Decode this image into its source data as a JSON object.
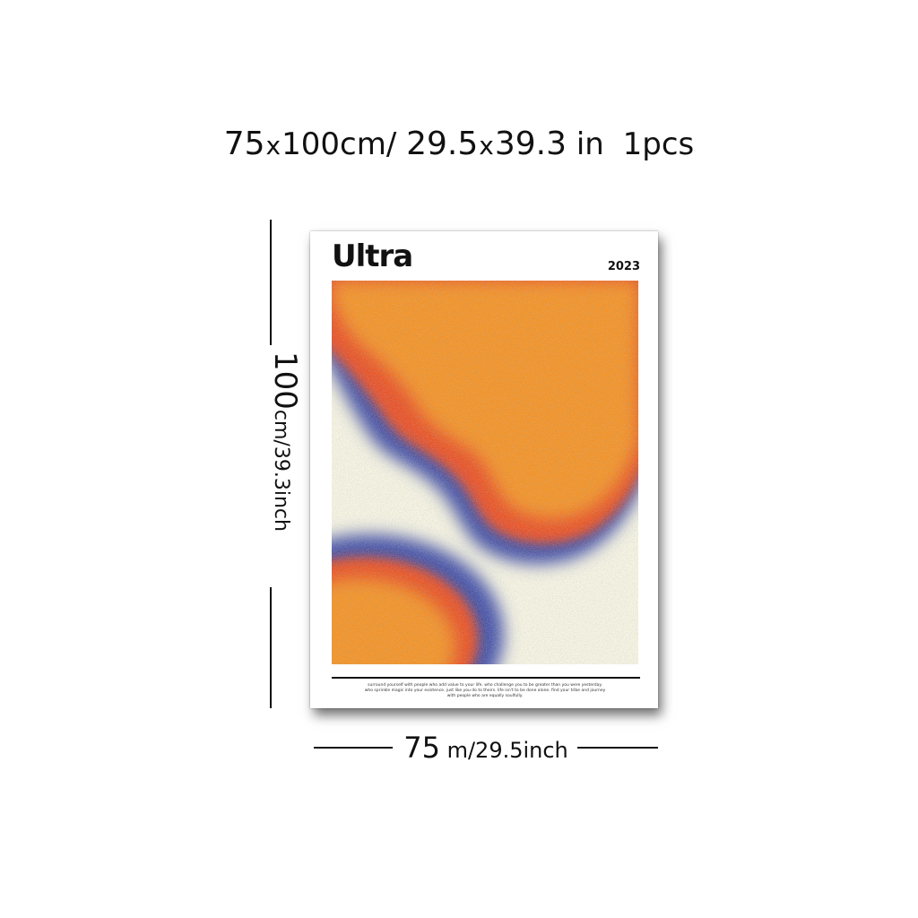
{
  "heading": {
    "width": "75",
    "x1": "x",
    "height": "100cm/",
    "width_in": "29.5",
    "x2": "x",
    "height_in": "39.3",
    "unit_in": "in",
    "qty": "1pcs"
  },
  "vertical_dimension": {
    "number": "100",
    "unit": "cm/39.3inch"
  },
  "horizontal_dimension": {
    "number": "75",
    "unit": "m/29.5inch"
  },
  "poster": {
    "title": "Ultra",
    "year": "2023",
    "quote": "surround yourself with people who add value to your life. who challenge you to be greater than you were yesterday. who sprinkle magic into your existence. just like you do to theirs. life isn't to be done alone. find your tribe and journey with people who are equally soulfully.",
    "colors": {
      "orange": "#f7901e",
      "red": "#ec4a1c",
      "blue": "#3a4aa6",
      "cream": "#fbf9e6"
    }
  }
}
